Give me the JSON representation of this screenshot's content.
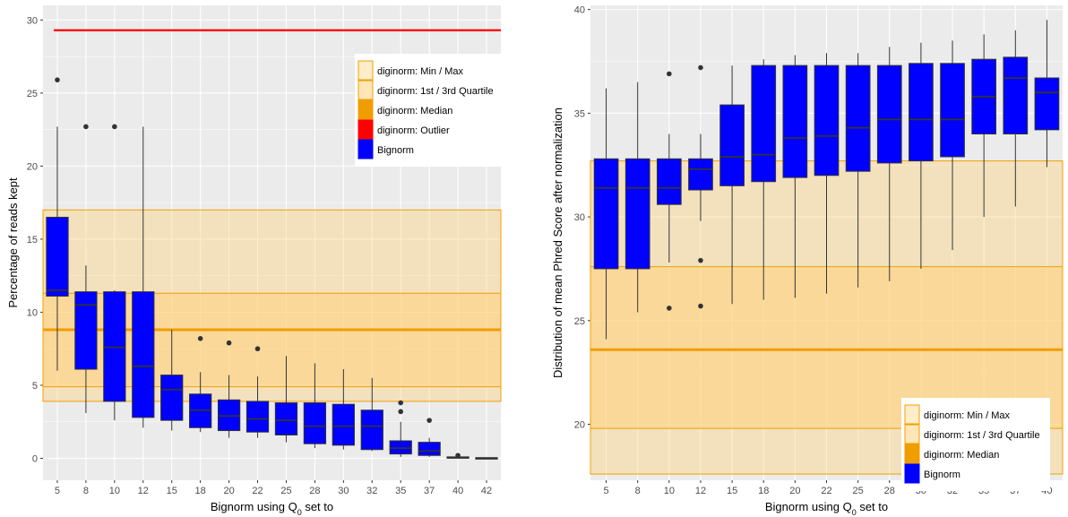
{
  "chart_data": [
    {
      "type": "box",
      "title": "",
      "xlabel": "Bignorm using Q",
      "xlabel_sub": "0",
      "xlabel_suffix": " set to",
      "ylabel": "Percentage of reads kept",
      "ylim": [
        -1.5,
        31
      ],
      "yticks": [
        0,
        5,
        10,
        15,
        20,
        25,
        30
      ],
      "categories": [
        "5",
        "8",
        "10",
        "12",
        "15",
        "18",
        "20",
        "22",
        "25",
        "28",
        "30",
        "32",
        "35",
        "37",
        "40",
        "42"
      ],
      "boxes": [
        {
          "lo": 6.0,
          "q1": 11.1,
          "med": 11.5,
          "q3": 16.5,
          "hi": 22.7,
          "out": [
            25.9
          ]
        },
        {
          "lo": 3.1,
          "q1": 6.1,
          "med": 10.5,
          "q3": 11.4,
          "hi": 13.2,
          "out": [
            22.7
          ]
        },
        {
          "lo": 2.6,
          "q1": 3.9,
          "med": 7.6,
          "q3": 11.4,
          "hi": 11.5,
          "out": [
            22.7
          ]
        },
        {
          "lo": 2.1,
          "q1": 2.8,
          "med": 6.3,
          "q3": 11.4,
          "hi": 22.7,
          "out": []
        },
        {
          "lo": 1.9,
          "q1": 2.6,
          "med": 4.7,
          "q3": 5.7,
          "hi": 8.8,
          "out": []
        },
        {
          "lo": 1.8,
          "q1": 2.1,
          "med": 3.3,
          "q3": 4.4,
          "hi": 5.9,
          "out": [
            8.2
          ]
        },
        {
          "lo": 1.4,
          "q1": 1.9,
          "med": 2.9,
          "q3": 4.0,
          "hi": 5.7,
          "out": [
            7.9
          ]
        },
        {
          "lo": 1.4,
          "q1": 1.8,
          "med": 2.7,
          "q3": 3.9,
          "hi": 5.6,
          "out": [
            7.5
          ]
        },
        {
          "lo": 1.1,
          "q1": 1.6,
          "med": 2.6,
          "q3": 3.8,
          "hi": 7.0,
          "out": []
        },
        {
          "lo": 0.7,
          "q1": 1.0,
          "med": 2.2,
          "q3": 3.8,
          "hi": 6.5,
          "out": []
        },
        {
          "lo": 0.6,
          "q1": 0.9,
          "med": 2.2,
          "q3": 3.7,
          "hi": 6.1,
          "out": []
        },
        {
          "lo": 0.5,
          "q1": 0.6,
          "med": 2.2,
          "q3": 3.3,
          "hi": 5.5,
          "out": []
        },
        {
          "lo": 0.1,
          "q1": 0.3,
          "med": 0.7,
          "q3": 1.2,
          "hi": 2.5,
          "out": [
            3.2,
            3.8
          ]
        },
        {
          "lo": 0.1,
          "q1": 0.2,
          "med": 0.5,
          "q3": 1.1,
          "hi": 1.4,
          "out": [
            2.6
          ]
        },
        {
          "lo": 0.0,
          "q1": 0.02,
          "med": 0.05,
          "q3": 0.1,
          "hi": 0.1,
          "out": [
            0.2
          ]
        },
        {
          "lo": 0.0,
          "q1": 0.0,
          "med": 0.02,
          "q3": 0.04,
          "hi": 0.05,
          "out": []
        }
      ],
      "diginorm": {
        "min": 3.9,
        "max": 17.0,
        "q1": 4.9,
        "q3": 11.3,
        "median": 8.8,
        "outlier": 29.3
      },
      "legend_position": "top-right"
    },
    {
      "type": "box",
      "title": "",
      "xlabel": "Bignorm using Q",
      "xlabel_sub": "0",
      "xlabel_suffix": " set to",
      "ylabel": "Distribution of mean Phred Score after normalization",
      "ylim": [
        17.3,
        40.2
      ],
      "yticks": [
        20,
        25,
        30,
        35,
        40
      ],
      "categories": [
        "5",
        "8",
        "10",
        "12",
        "15",
        "18",
        "20",
        "22",
        "25",
        "28",
        "30",
        "32",
        "35",
        "37",
        "40"
      ],
      "boxes": [
        {
          "lo": 24.1,
          "q1": 27.5,
          "med": 31.4,
          "q3": 32.8,
          "hi": 36.2,
          "out": []
        },
        {
          "lo": 25.4,
          "q1": 27.5,
          "med": 31.4,
          "q3": 32.8,
          "hi": 36.5,
          "out": []
        },
        {
          "lo": 27.8,
          "q1": 30.6,
          "med": 31.4,
          "q3": 32.8,
          "hi": 34.0,
          "out": [
            36.9,
            25.6
          ]
        },
        {
          "lo": 29.8,
          "q1": 31.3,
          "med": 32.3,
          "q3": 32.8,
          "hi": 34.0,
          "out": [
            37.2,
            27.9,
            25.7
          ]
        },
        {
          "lo": 25.8,
          "q1": 31.5,
          "med": 32.9,
          "q3": 35.4,
          "hi": 37.3,
          "out": []
        },
        {
          "lo": 26.0,
          "q1": 31.7,
          "med": 33.0,
          "q3": 37.3,
          "hi": 37.6,
          "out": []
        },
        {
          "lo": 26.1,
          "q1": 31.9,
          "med": 33.8,
          "q3": 37.3,
          "hi": 37.8,
          "out": []
        },
        {
          "lo": 26.3,
          "q1": 32.0,
          "med": 33.9,
          "q3": 37.3,
          "hi": 37.9,
          "out": []
        },
        {
          "lo": 26.6,
          "q1": 32.2,
          "med": 34.3,
          "q3": 37.3,
          "hi": 37.9,
          "out": []
        },
        {
          "lo": 26.9,
          "q1": 32.6,
          "med": 34.7,
          "q3": 37.3,
          "hi": 38.2,
          "out": []
        },
        {
          "lo": 27.5,
          "q1": 32.7,
          "med": 34.7,
          "q3": 37.4,
          "hi": 38.4,
          "out": []
        },
        {
          "lo": 28.4,
          "q1": 32.9,
          "med": 34.7,
          "q3": 37.4,
          "hi": 38.5,
          "out": []
        },
        {
          "lo": 30.0,
          "q1": 34.0,
          "med": 35.8,
          "q3": 37.6,
          "hi": 38.8,
          "out": []
        },
        {
          "lo": 30.5,
          "q1": 34.0,
          "med": 36.7,
          "q3": 37.7,
          "hi": 39.0,
          "out": []
        },
        {
          "lo": 32.4,
          "q1": 34.2,
          "med": 36.0,
          "q3": 36.7,
          "hi": 39.5,
          "out": []
        }
      ],
      "diginorm": {
        "min": 17.6,
        "max": 32.7,
        "q1": 19.8,
        "q3": 27.6,
        "median": 23.6
      },
      "legend_position": "bottom-right"
    }
  ],
  "legend": {
    "minmax": "diginorm: Min / Max",
    "quartile": "diginorm: 1st / 3rd Quartile",
    "median": "diginorm: Median",
    "outlier": "diginorm: Outlier",
    "bignorm": "Bignorm"
  },
  "colors": {
    "panel_bg": "#ebebeb",
    "grid": "#ffffff",
    "box_fill": "#0000ff",
    "box_line": "#333333",
    "diginorm_band_fill": "#ffd27a",
    "diginorm_band_edge": "#f0a000",
    "diginorm_median": "#f09d00",
    "outlier_line": "#ff0000"
  }
}
